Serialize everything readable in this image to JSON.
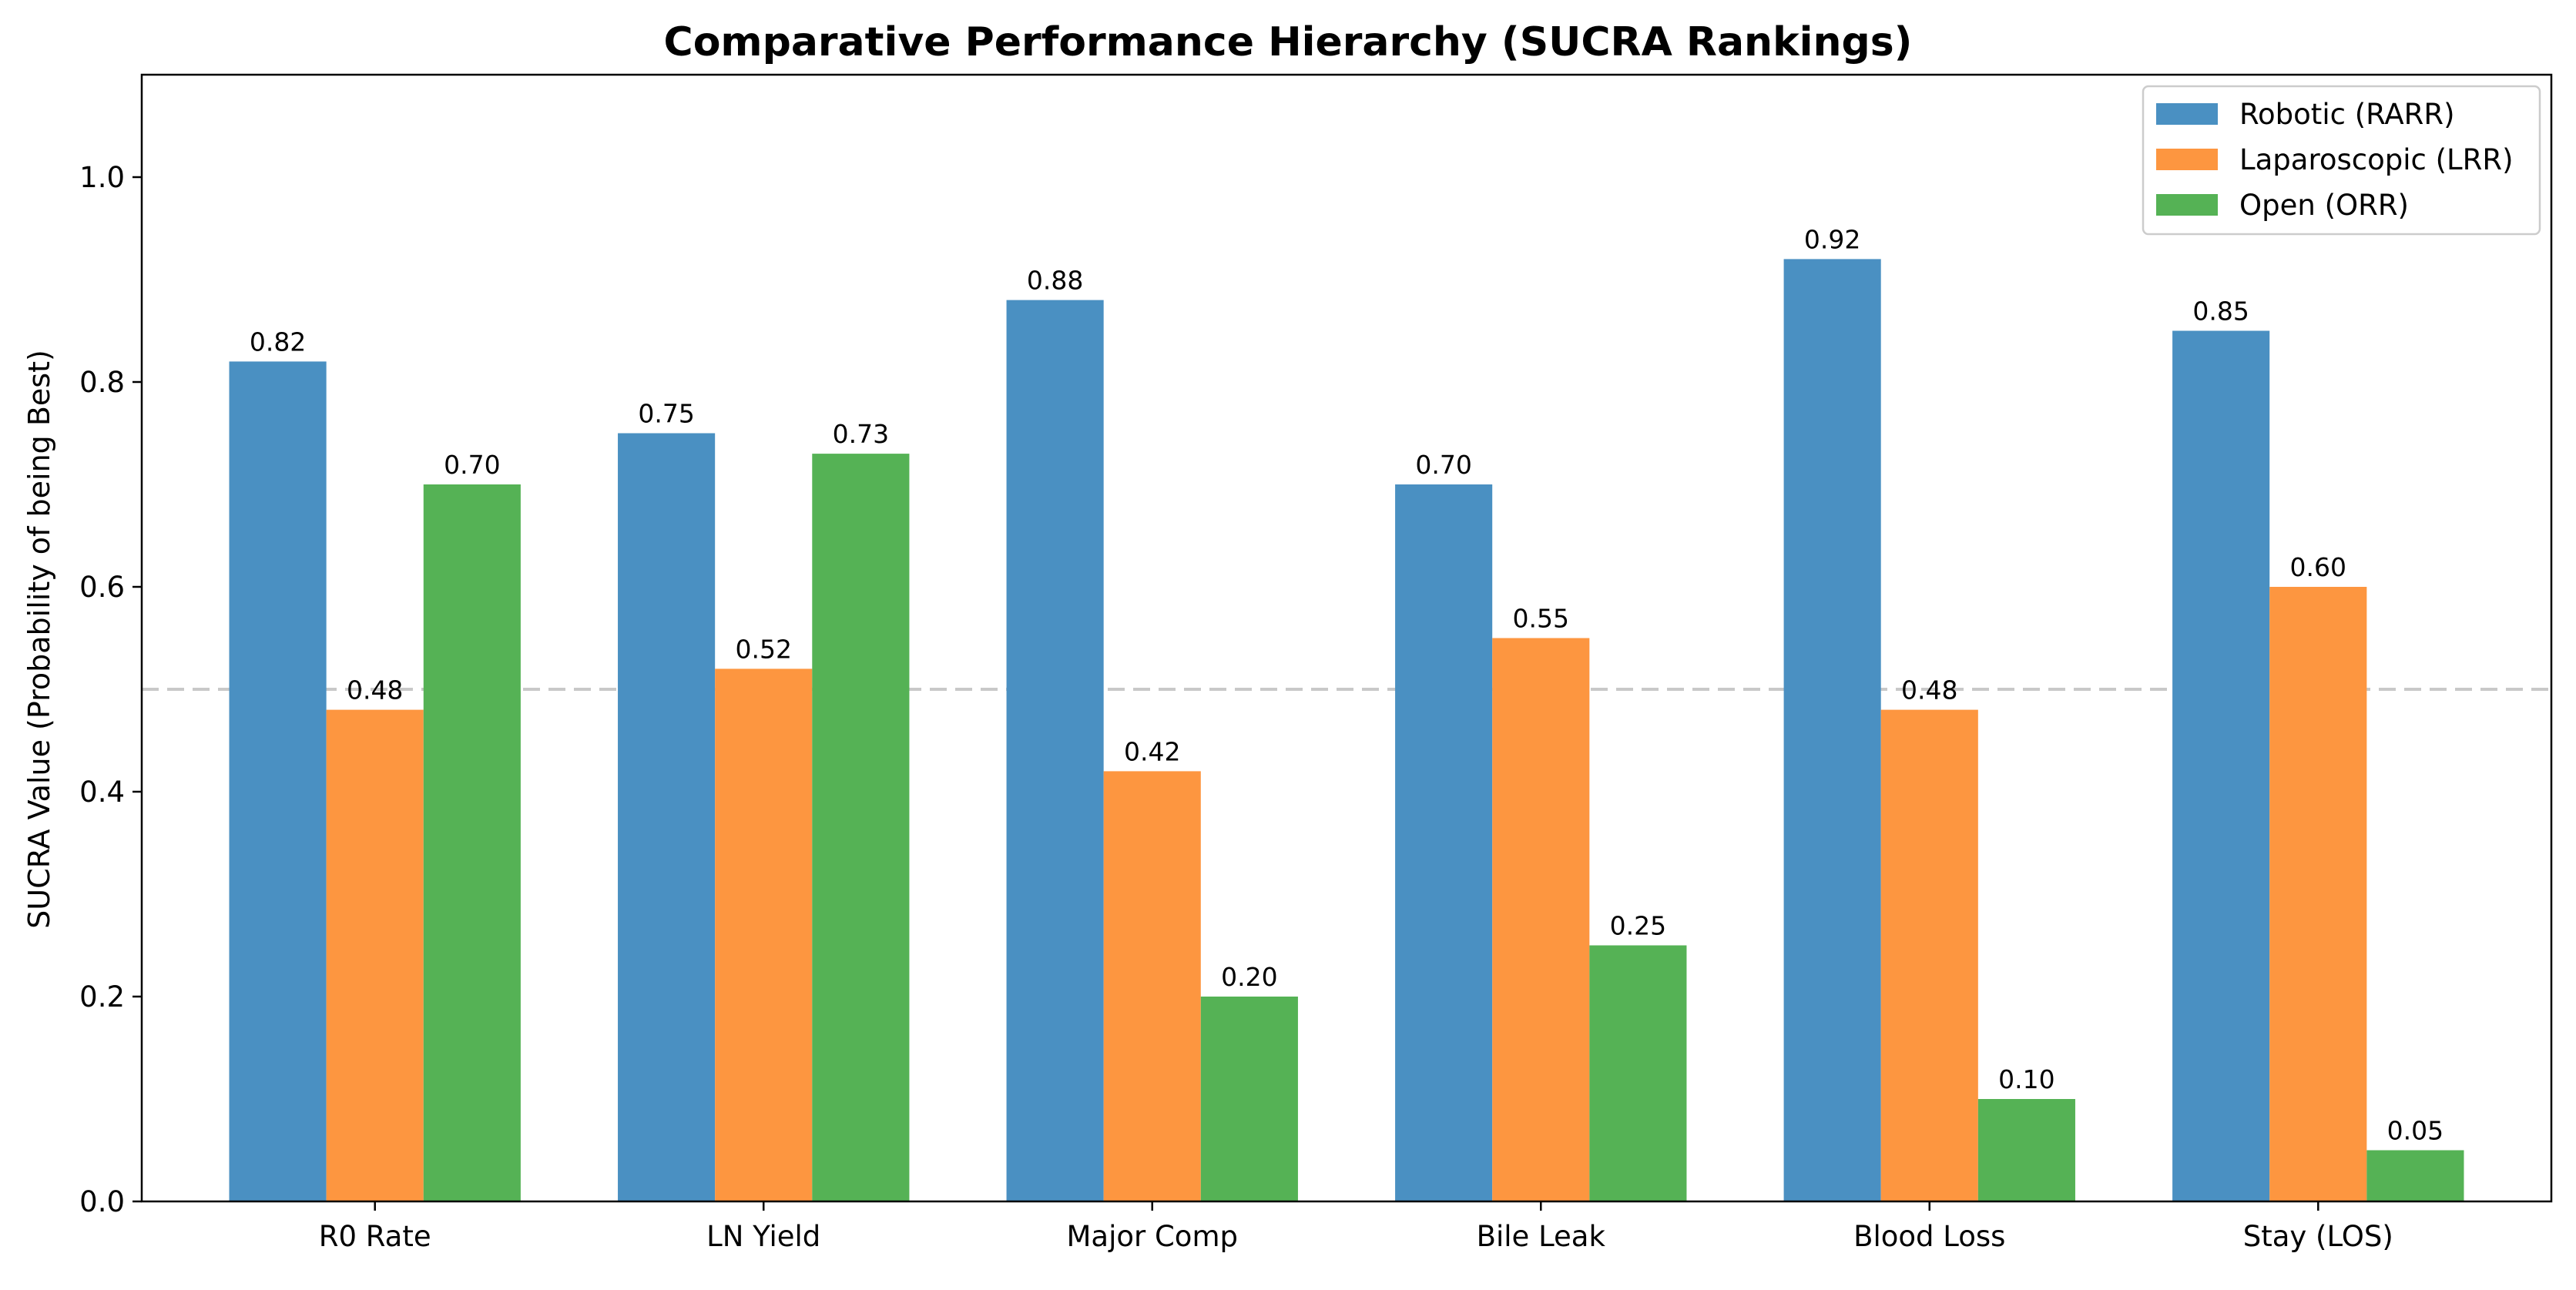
{
  "chart_data": {
    "type": "bar",
    "title": "Comparative Performance Hierarchy (SUCRA Rankings)",
    "xlabel": "",
    "ylabel": "SUCRA Value (Probability of being Best)",
    "ylim": [
      0,
      1.1
    ],
    "yticks": [
      0.0,
      0.2,
      0.4,
      0.6,
      0.8,
      1.0
    ],
    "ytick_labels": [
      "0.0",
      "0.2",
      "0.4",
      "0.6",
      "0.8",
      "1.0"
    ],
    "grid": false,
    "reference_line": 0.5,
    "legend_position": "top-right",
    "categories": [
      "R0 Rate",
      "LN Yield",
      "Major Comp",
      "Bile Leak",
      "Blood Loss",
      "Stay (LOS)"
    ],
    "series": [
      {
        "name": "Robotic (RARR)",
        "color": "#4a90c2",
        "values": [
          0.82,
          0.75,
          0.88,
          0.7,
          0.92,
          0.85
        ],
        "labels": [
          "0.82",
          "0.75",
          "0.88",
          "0.70",
          "0.92",
          "0.85"
        ]
      },
      {
        "name": "Laparoscopic (LRR)",
        "color": "#fd9640",
        "values": [
          0.48,
          0.52,
          0.42,
          0.55,
          0.48,
          0.6
        ],
        "labels": [
          "0.48",
          "0.52",
          "0.42",
          "0.55",
          "0.48",
          "0.60"
        ]
      },
      {
        "name": "Open (ORR)",
        "color": "#55b255",
        "values": [
          0.7,
          0.73,
          0.2,
          0.25,
          0.1,
          0.05
        ],
        "labels": [
          "0.70",
          "0.73",
          "0.20",
          "0.25",
          "0.10",
          "0.05"
        ]
      }
    ]
  }
}
